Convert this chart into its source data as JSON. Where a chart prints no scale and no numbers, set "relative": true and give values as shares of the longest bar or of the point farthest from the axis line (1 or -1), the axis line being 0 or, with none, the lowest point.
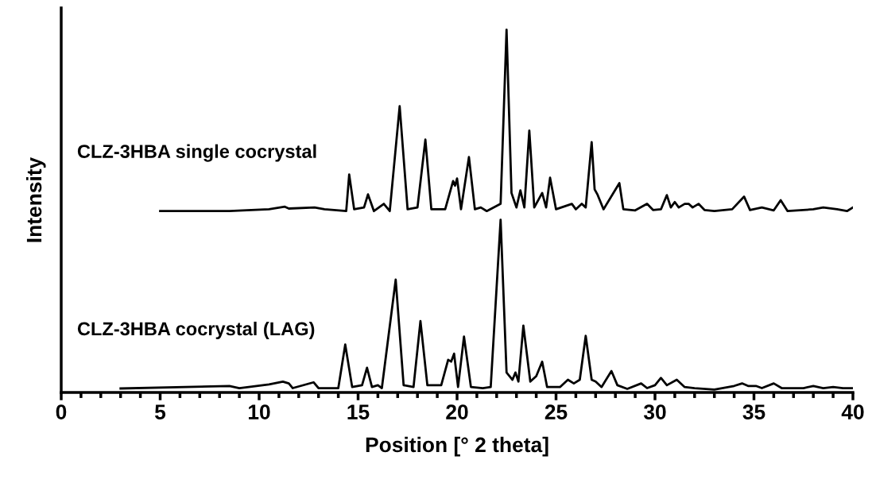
{
  "chart_data": {
    "type": "line",
    "relative": true,
    "xlabel": "Position [° 2 theta]",
    "ylabel": "Intensity",
    "xlim": [
      0,
      40
    ],
    "xticks": [
      0,
      5,
      10,
      15,
      20,
      25,
      30,
      35,
      40
    ],
    "legend": false,
    "grid": false,
    "tick_labels": "x",
    "marker": "none",
    "line_style": "solid",
    "series": [
      {
        "name": "CLZ-3HBA single cocrystal",
        "color": "#000000",
        "x": [
          5,
          8.5,
          10.5,
          11.3,
          11.5,
          12.8,
          13.3,
          14.4,
          14.55,
          14.8,
          15.3,
          15.5,
          15.8,
          16.3,
          16.6,
          17.1,
          17.5,
          18.0,
          18.4,
          18.7,
          19.4,
          19.8,
          19.9,
          20.0,
          20.2,
          20.6,
          20.9,
          21.2,
          21.5,
          22.2,
          22.5,
          22.75,
          23.0,
          23.2,
          23.4,
          23.65,
          23.9,
          24.3,
          24.5,
          24.7,
          25.0,
          25.8,
          26.0,
          26.3,
          26.5,
          26.8,
          26.95,
          27.1,
          27.4,
          28.2,
          28.4,
          29.0,
          29.6,
          29.9,
          30.3,
          30.6,
          30.8,
          31.0,
          31.2,
          31.5,
          31.7,
          31.9,
          32.2,
          32.5,
          33.0,
          33.9,
          34.5,
          34.8,
          35.4,
          36.0,
          36.35,
          36.7,
          38.0,
          38.5,
          39.2,
          39.7,
          40
        ],
        "values": [
          0.5,
          0.5,
          0.505,
          0.512,
          0.507,
          0.51,
          0.505,
          0.5,
          0.601,
          0.505,
          0.51,
          0.546,
          0.5,
          0.52,
          0.5,
          0.789,
          0.505,
          0.51,
          0.697,
          0.505,
          0.505,
          0.583,
          0.57,
          0.59,
          0.505,
          0.649,
          0.505,
          0.51,
          0.5,
          0.52,
          1.0,
          0.55,
          0.51,
          0.557,
          0.51,
          0.722,
          0.51,
          0.55,
          0.51,
          0.592,
          0.505,
          0.52,
          0.505,
          0.52,
          0.51,
          0.69,
          0.56,
          0.545,
          0.505,
          0.577,
          0.505,
          0.502,
          0.52,
          0.503,
          0.505,
          0.544,
          0.51,
          0.525,
          0.51,
          0.52,
          0.52,
          0.51,
          0.52,
          0.503,
          0.5,
          0.505,
          0.54,
          0.503,
          0.51,
          0.502,
          0.53,
          0.5,
          0.505,
          0.51,
          0.505,
          0.5,
          0.51
        ]
      },
      {
        "name": "CLZ-3HBA cocrystal (LAG)",
        "color": "#000000",
        "x": [
          3,
          8.5,
          9.0,
          10.5,
          11.2,
          11.5,
          11.7,
          12.75,
          13.0,
          14.0,
          14.35,
          14.7,
          15.2,
          15.45,
          15.7,
          16.0,
          16.2,
          16.9,
          17.3,
          17.8,
          18.15,
          18.5,
          19.2,
          19.55,
          19.7,
          19.85,
          20.05,
          20.35,
          20.7,
          21.3,
          21.7,
          22.2,
          22.5,
          22.8,
          22.95,
          23.1,
          23.35,
          23.7,
          24.0,
          24.3,
          24.55,
          25.2,
          25.6,
          25.9,
          26.2,
          26.5,
          26.8,
          27.0,
          27.3,
          27.8,
          28.1,
          28.6,
          29.3,
          29.6,
          30.0,
          30.3,
          30.6,
          31.1,
          31.5,
          32.0,
          33.0,
          34.0,
          34.4,
          34.7,
          35.1,
          35.4,
          36.0,
          36.4,
          37.5,
          38.0,
          38.5,
          39.0,
          39.5,
          40.0
        ],
        "values": [
          0.011,
          0.018,
          0.012,
          0.022,
          0.03,
          0.025,
          0.012,
          0.028,
          0.012,
          0.012,
          0.132,
          0.015,
          0.02,
          0.068,
          0.015,
          0.02,
          0.012,
          0.311,
          0.02,
          0.015,
          0.197,
          0.02,
          0.02,
          0.09,
          0.085,
          0.107,
          0.015,
          0.154,
          0.015,
          0.012,
          0.015,
          0.476,
          0.055,
          0.035,
          0.055,
          0.03,
          0.184,
          0.03,
          0.045,
          0.085,
          0.015,
          0.015,
          0.035,
          0.025,
          0.035,
          0.156,
          0.035,
          0.03,
          0.015,
          0.059,
          0.02,
          0.01,
          0.025,
          0.012,
          0.02,
          0.04,
          0.02,
          0.035,
          0.015,
          0.012,
          0.008,
          0.018,
          0.025,
          0.018,
          0.018,
          0.012,
          0.025,
          0.012,
          0.012,
          0.018,
          0.012,
          0.015,
          0.012,
          0.012
        ]
      }
    ]
  }
}
